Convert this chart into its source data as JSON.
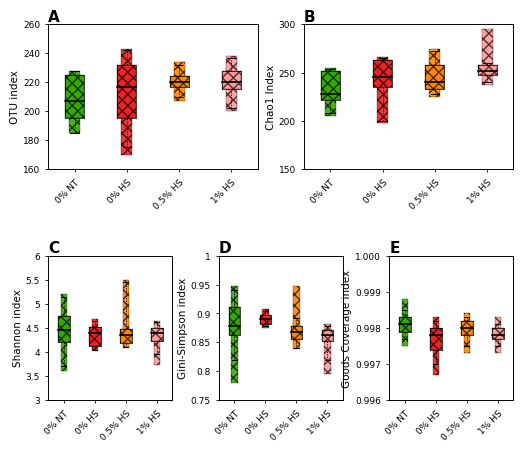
{
  "panels": {
    "A": {
      "title": "A",
      "ylabel": "OTU index",
      "ylim": [
        160,
        260
      ],
      "yticks": [
        160,
        180,
        200,
        220,
        240,
        260
      ],
      "groups": [
        "0% NT",
        "0% HS",
        "0.5% HS",
        "1% HS"
      ],
      "colors": [
        "#33aa00",
        "#ee2222",
        "#ff8800",
        "#ff9999"
      ],
      "medians": [
        207,
        217,
        220,
        220
      ],
      "q1": [
        195,
        195,
        217,
        215
      ],
      "q3": [
        225,
        232,
        224,
        228
      ],
      "whislo": [
        185,
        175,
        210,
        202
      ],
      "whishi": [
        228,
        242,
        232,
        237
      ],
      "vmin": [
        185,
        170,
        207,
        200
      ],
      "vmax": [
        228,
        243,
        234,
        238
      ]
    },
    "B": {
      "title": "B",
      "ylabel": "Chao1 Index",
      "ylim": [
        150,
        300
      ],
      "yticks": [
        150,
        200,
        250,
        300
      ],
      "groups": [
        "0% NT",
        "0% HS",
        "0.5% HS",
        "1% HS"
      ],
      "colors": [
        "#33aa00",
        "#ee2222",
        "#ff8800",
        "#ff9999"
      ],
      "medians": [
        228,
        245,
        240,
        252
      ],
      "q1": [
        222,
        235,
        233,
        248
      ],
      "q3": [
        252,
        263,
        258,
        258
      ],
      "whislo": [
        208,
        200,
        228,
        240
      ],
      "whishi": [
        254,
        265,
        272,
        260
      ],
      "vmin": [
        205,
        198,
        225,
        237
      ],
      "vmax": [
        255,
        266,
        274,
        295
      ]
    },
    "C": {
      "title": "C",
      "ylabel": "Shannon index",
      "ylim": [
        3.0,
        6.0
      ],
      "yticks": [
        3.0,
        3.5,
        4.0,
        4.5,
        5.0,
        5.5,
        6.0
      ],
      "groups": [
        "0% NT",
        "0% HS",
        "0.5% HS",
        "1% HS"
      ],
      "colors": [
        "#33aa00",
        "#ee2222",
        "#ff8800",
        "#ff9999"
      ],
      "medians": [
        4.45,
        4.4,
        4.35,
        4.4
      ],
      "q1": [
        4.2,
        4.12,
        4.18,
        4.22
      ],
      "q3": [
        4.75,
        4.52,
        4.48,
        4.5
      ],
      "whislo": [
        3.7,
        4.05,
        4.1,
        3.95
      ],
      "whishi": [
        5.15,
        4.65,
        5.45,
        4.62
      ],
      "vmin": [
        3.6,
        4.03,
        4.08,
        3.72
      ],
      "vmax": [
        5.2,
        4.68,
        5.5,
        4.65
      ]
    },
    "D": {
      "title": "D",
      "ylabel": "Gini-Simpson index",
      "ylim": [
        0.75,
        1.0
      ],
      "yticks": [
        0.75,
        0.8,
        0.85,
        0.9,
        0.95,
        1.0
      ],
      "groups": [
        "0% NT",
        "0% HS",
        "0.5% HS",
        "1% HS"
      ],
      "colors": [
        "#33aa00",
        "#ee2222",
        "#ff8800",
        "#ff9999"
      ],
      "medians": [
        0.878,
        0.89,
        0.868,
        0.863
      ],
      "q1": [
        0.862,
        0.882,
        0.855,
        0.852
      ],
      "q3": [
        0.912,
        0.898,
        0.878,
        0.872
      ],
      "whislo": [
        0.82,
        0.878,
        0.84,
        0.82
      ],
      "whishi": [
        0.94,
        0.905,
        0.892,
        0.878
      ],
      "vmin": [
        0.78,
        0.875,
        0.838,
        0.795
      ],
      "vmax": [
        0.948,
        0.908,
        0.948,
        0.882
      ]
    },
    "E": {
      "title": "E",
      "ylabel": "Goods Coverage index",
      "ylim": [
        0.996,
        1.0
      ],
      "yticks": [
        0.996,
        0.997,
        0.998,
        0.999,
        1.0
      ],
      "yticklabels": [
        "0.996",
        "0.997",
        "0.998",
        "0.999",
        "1.000"
      ],
      "groups": [
        "0% NT",
        "0% HS",
        "0.5% HS",
        "1% HS"
      ],
      "colors": [
        "#33aa00",
        "#ee2222",
        "#ff8800",
        "#ff9999"
      ],
      "medians": [
        0.9981,
        0.9978,
        0.998,
        0.9978
      ],
      "q1": [
        0.9979,
        0.9974,
        0.9978,
        0.9977
      ],
      "q3": [
        0.9983,
        0.998,
        0.9982,
        0.998
      ],
      "whislo": [
        0.9977,
        0.997,
        0.9975,
        0.9975
      ],
      "whishi": [
        0.9985,
        0.9982,
        0.9983,
        0.9981
      ],
      "vmin": [
        0.9975,
        0.9967,
        0.9973,
        0.9973
      ],
      "vmax": [
        0.9988,
        0.9983,
        0.9984,
        0.9983
      ]
    }
  },
  "hatch_pattern": "xxx",
  "tick_label_fontsize": 6.5,
  "axis_label_fontsize": 7.5,
  "panel_label_fontsize": 11
}
